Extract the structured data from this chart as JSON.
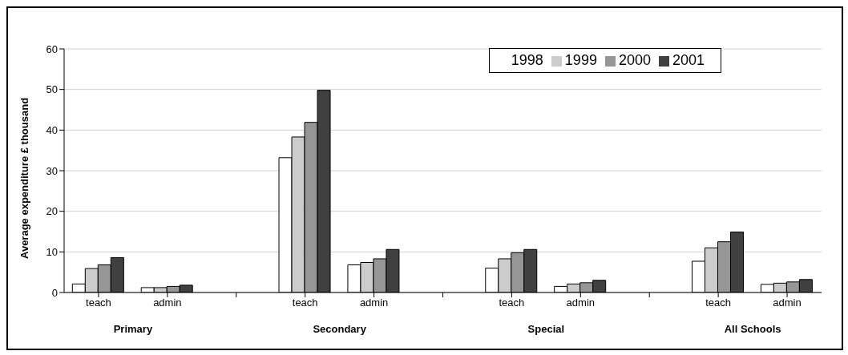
{
  "chart_data": {
    "type": "bar",
    "ylabel": "Average expenditure £ thousand",
    "categories": [
      "teach",
      "admin",
      null,
      "teach",
      "admin",
      null,
      "teach",
      "admin",
      null,
      "teach",
      "admin"
    ],
    "series": [
      {
        "name": "1998",
        "color": "#ffffff",
        "values": [
          2.1,
          1.2,
          null,
          33.2,
          6.8,
          null,
          6.0,
          1.5,
          null,
          7.7,
          2.0
        ]
      },
      {
        "name": "1999",
        "color": "#cccccc",
        "values": [
          5.9,
          1.2,
          null,
          38.3,
          7.4,
          null,
          8.3,
          2.1,
          null,
          11.0,
          2.3
        ]
      },
      {
        "name": "2000",
        "color": "#969696",
        "values": [
          6.8,
          1.5,
          null,
          41.9,
          8.3,
          null,
          9.8,
          2.4,
          null,
          12.5,
          2.6
        ]
      },
      {
        "name": "2001",
        "color": "#404040",
        "values": [
          8.6,
          1.8,
          null,
          49.8,
          10.6,
          null,
          10.6,
          3.0,
          null,
          14.9,
          3.2
        ]
      }
    ],
    "annotations": [
      "Primary",
      "Secondary",
      "Special",
      "All Schools"
    ],
    "ylim": [
      0,
      60
    ],
    "yticks": [
      0,
      10,
      20,
      30,
      40,
      50,
      60
    ],
    "grid": "y",
    "legend": "top right"
  }
}
